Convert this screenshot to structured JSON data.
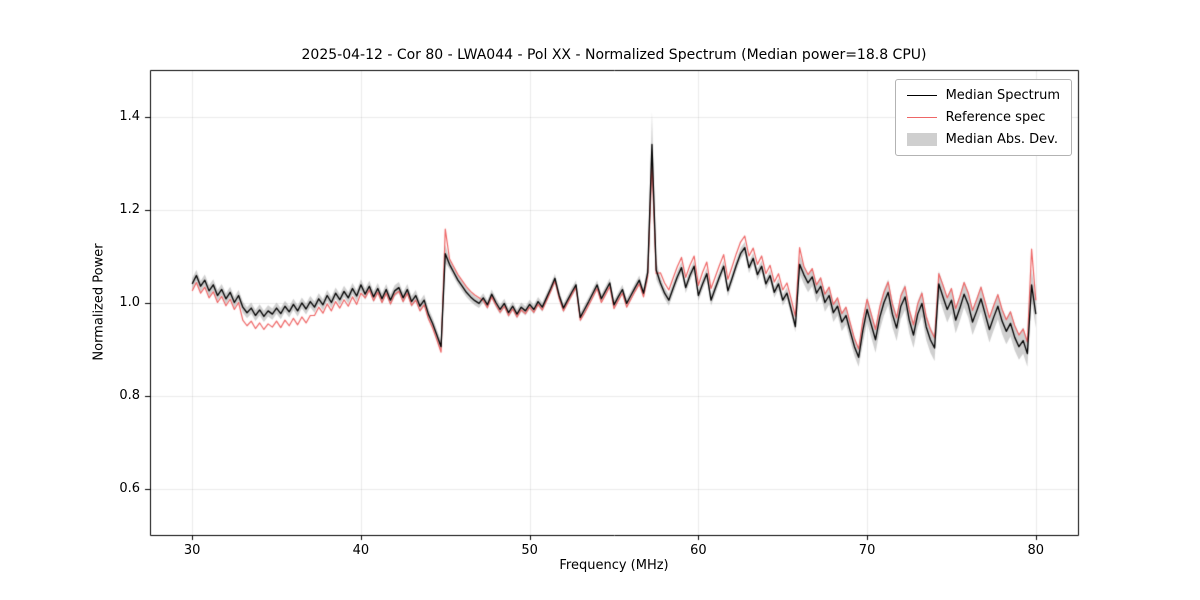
{
  "chart_data": {
    "type": "line",
    "title": "2025-04-12 - Cor 80 - LWA044 - Pol XX - Normalized Spectrum (Median power=18.8 CPU)",
    "xlabel": "Frequency (MHz)",
    "ylabel": "Normalized Power",
    "xlim": [
      27.5,
      82.5
    ],
    "ylim": [
      0.5,
      1.5
    ],
    "xticks": [
      30,
      40,
      50,
      60,
      70,
      80
    ],
    "xtick_labels": [
      "30",
      "40",
      "50",
      "60",
      "70",
      "80"
    ],
    "yticks": [
      0.6,
      0.8,
      1.0,
      1.2,
      1.4
    ],
    "ytick_labels": [
      "0.6",
      "0.8",
      "1.0",
      "1.2",
      "1.4"
    ],
    "grid": true,
    "legend_position": "upper-right",
    "legend": [
      {
        "label": "Median Spectrum",
        "type": "line",
        "color": "#000000"
      },
      {
        "label": "Reference spec",
        "type": "line",
        "color": "#ee6666"
      },
      {
        "label": "Median Abs. Dev.",
        "type": "patch",
        "color": "rgba(128,128,128,0.38)"
      }
    ],
    "colors": {
      "median": "#000000",
      "reference": "#ee6666",
      "band": "rgba(128,128,128,0.38)",
      "grid": "rgba(0,0,0,0.08)",
      "frame": "#000000"
    },
    "series": {
      "x_start": 30.0,
      "x_step": 0.25,
      "median": [
        1.04,
        1.058,
        1.035,
        1.048,
        1.025,
        1.038,
        1.015,
        1.028,
        1.008,
        1.022,
        1.0,
        1.015,
        0.99,
        0.978,
        0.988,
        0.972,
        0.984,
        0.97,
        0.982,
        0.975,
        0.988,
        0.976,
        0.992,
        0.98,
        0.996,
        0.982,
        0.999,
        0.986,
        1.002,
        0.99,
        1.008,
        0.995,
        1.015,
        1.0,
        1.02,
        1.006,
        1.024,
        1.01,
        1.03,
        1.014,
        1.038,
        1.018,
        1.035,
        1.012,
        1.03,
        1.008,
        1.028,
        1.005,
        1.025,
        1.032,
        1.01,
        1.028,
        1.002,
        1.015,
        0.992,
        1.005,
        0.975,
        0.955,
        0.93,
        0.905,
        1.105,
        1.082,
        1.065,
        1.048,
        1.035,
        1.022,
        1.012,
        1.004,
        0.998,
        1.01,
        0.995,
        1.018,
        1.0,
        0.985,
        0.998,
        0.978,
        0.992,
        0.975,
        0.99,
        0.982,
        0.996,
        0.985,
        1.002,
        0.99,
        1.01,
        1.03,
        1.052,
        1.015,
        0.988,
        1.005,
        1.022,
        1.038,
        0.968,
        0.985,
        1.002,
        1.02,
        1.038,
        1.008,
        1.025,
        1.042,
        0.995,
        1.012,
        1.028,
        0.998,
        1.015,
        1.032,
        1.048,
        1.02,
        1.065,
        1.34,
        1.07,
        1.042,
        1.02,
        1.005,
        1.03,
        1.055,
        1.075,
        1.032,
        1.058,
        1.078,
        1.015,
        1.04,
        1.062,
        1.005,
        1.03,
        1.055,
        1.078,
        1.025,
        1.052,
        1.08,
        1.105,
        1.118,
        1.075,
        1.095,
        1.06,
        1.078,
        1.04,
        1.058,
        1.022,
        1.04,
        1.005,
        1.02,
        0.985,
        0.948,
        1.082,
        1.06,
        1.042,
        1.055,
        1.02,
        1.035,
        1.0,
        1.015,
        0.978,
        0.992,
        0.958,
        0.972,
        0.938,
        0.905,
        0.882,
        0.94,
        0.985,
        0.952,
        0.92,
        0.968,
        1.0,
        1.022,
        0.975,
        0.945,
        0.992,
        1.012,
        0.962,
        0.93,
        0.975,
        0.998,
        0.948,
        0.92,
        0.902,
        1.04,
        1.012,
        0.985,
        1.005,
        0.962,
        0.988,
        1.018,
        0.995,
        0.958,
        0.982,
        1.008,
        0.975,
        0.942,
        0.968,
        0.992,
        0.96,
        0.938,
        0.955,
        0.925,
        0.905,
        0.918,
        0.89,
        1.038,
        0.975
      ],
      "reference": [
        1.025,
        1.043,
        1.02,
        1.033,
        1.01,
        1.023,
        1.0,
        1.013,
        0.993,
        1.007,
        0.985,
        1.0,
        0.962,
        0.95,
        0.96,
        0.944,
        0.956,
        0.942,
        0.954,
        0.947,
        0.96,
        0.946,
        0.962,
        0.95,
        0.966,
        0.952,
        0.969,
        0.956,
        0.972,
        0.972,
        0.99,
        0.977,
        0.997,
        0.982,
        1.002,
        0.988,
        1.006,
        0.992,
        1.012,
        0.996,
        1.02,
        1.01,
        1.027,
        1.004,
        1.022,
        1.0,
        1.02,
        0.997,
        1.017,
        1.024,
        1.002,
        1.02,
        0.994,
        1.005,
        0.982,
        0.995,
        0.965,
        0.945,
        0.92,
        0.893,
        1.158,
        1.094,
        1.077,
        1.06,
        1.047,
        1.034,
        1.024,
        1.016,
        1.01,
        1.004,
        0.989,
        1.012,
        0.994,
        0.979,
        0.992,
        0.972,
        0.986,
        0.969,
        0.984,
        0.976,
        0.99,
        0.979,
        0.996,
        0.984,
        1.004,
        1.024,
        1.046,
        1.009,
        0.982,
        0.999,
        1.016,
        1.032,
        0.962,
        0.977,
        0.994,
        1.012,
        1.03,
        1.0,
        1.017,
        1.034,
        0.987,
        1.004,
        1.02,
        0.99,
        1.007,
        1.024,
        1.04,
        1.012,
        1.057,
        1.3,
        1.062,
        1.064,
        1.042,
        1.027,
        1.052,
        1.077,
        1.097,
        1.054,
        1.08,
        1.1,
        1.037,
        1.065,
        1.087,
        1.03,
        1.055,
        1.08,
        1.103,
        1.05,
        1.077,
        1.105,
        1.13,
        1.143,
        1.1,
        1.117,
        1.082,
        1.1,
        1.062,
        1.08,
        1.044,
        1.062,
        1.027,
        1.042,
        1.007,
        0.97,
        1.118,
        1.078,
        1.06,
        1.073,
        1.038,
        1.053,
        1.018,
        1.033,
        0.996,
        1.01,
        0.976,
        0.99,
        0.956,
        0.923,
        0.9,
        0.962,
        1.007,
        0.974,
        0.942,
        0.99,
        1.022,
        1.044,
        0.997,
        0.967,
        1.014,
        1.034,
        0.984,
        0.952,
        0.997,
        1.02,
        0.97,
        0.942,
        0.924,
        1.062,
        1.037,
        1.01,
        1.03,
        0.987,
        1.013,
        1.043,
        1.02,
        0.983,
        1.007,
        1.033,
        1.0,
        0.967,
        0.993,
        1.017,
        0.985,
        0.963,
        0.98,
        0.95,
        0.93,
        0.943,
        0.915,
        1.115,
        1.005
      ],
      "mad_rle": [
        [
          60,
          0.012
        ],
        [
          1,
          0.02
        ],
        [
          47,
          0.01
        ],
        [
          1,
          0.02
        ],
        [
          1,
          0.07
        ],
        [
          1,
          0.02
        ],
        [
          33,
          0.012
        ],
        [
          15,
          0.02
        ],
        [
          40,
          0.028
        ],
        [
          1,
          0.035
        ],
        [
          1,
          0.03
        ]
      ]
    }
  }
}
